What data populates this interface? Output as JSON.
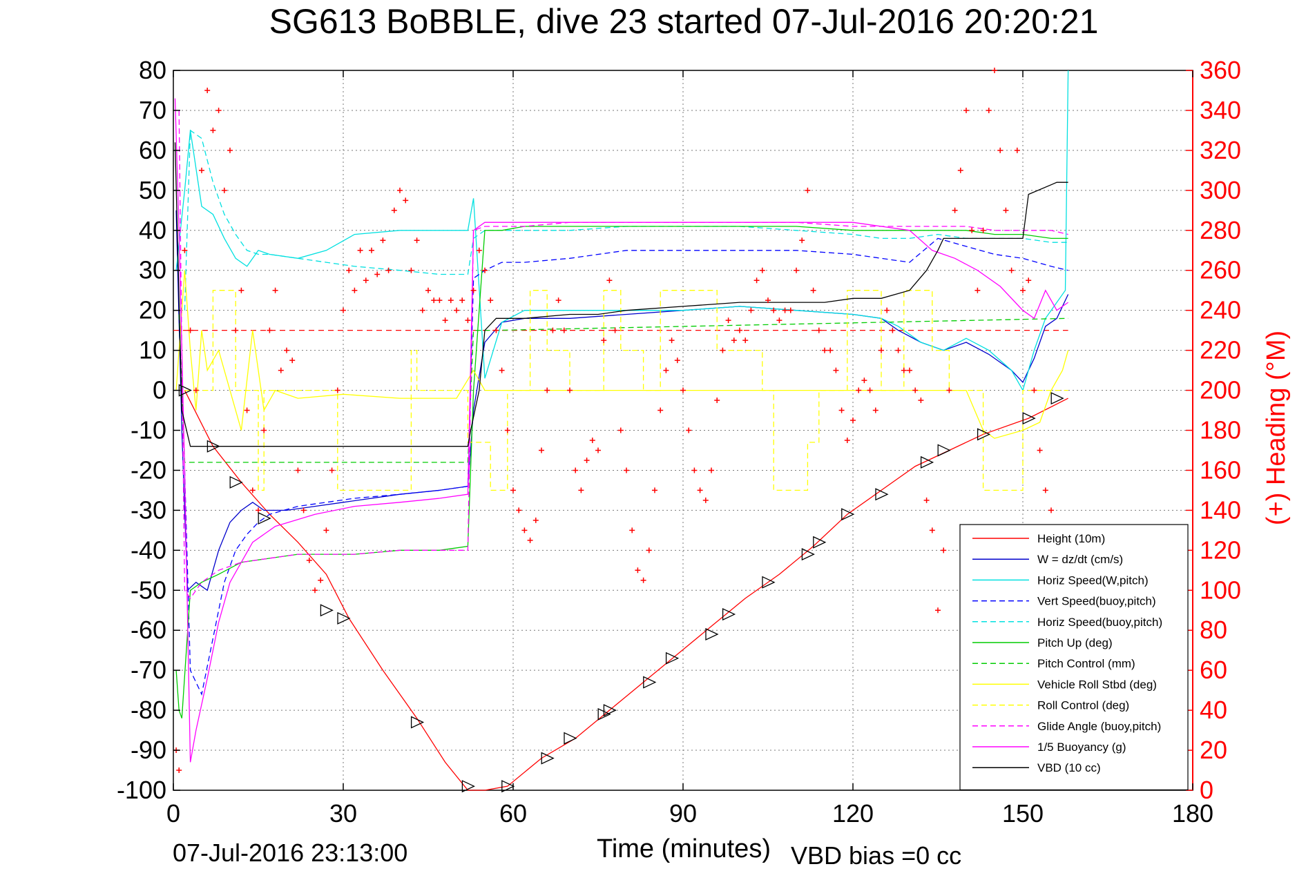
{
  "chart_data": {
    "type": "line",
    "title": "SG613 BoBBLE, dive 23 started 07-Jul-2016 20:20:21",
    "xlabel": "Time (minutes)",
    "ylabel": "",
    "ylabel_right": "(+) Heading (°M)",
    "footer_left": "07-Jul-2016 23:13:00",
    "footer_center": "VBD bias =0 cc",
    "xlim": [
      0,
      180
    ],
    "ylim": [
      -100,
      80
    ],
    "ylim_right": [
      0,
      360
    ],
    "x_ticks": [
      "0",
      "30",
      "60",
      "90",
      "120",
      "150",
      "180"
    ],
    "y_ticks": [
      "80",
      "70",
      "60",
      "50",
      "40",
      "30",
      "20",
      "10",
      "0",
      "-10",
      "-20",
      "-30",
      "-40",
      "-50",
      "-60",
      "-70",
      "-80",
      "-90",
      "-100"
    ],
    "y_right_ticks": [
      "360",
      "340",
      "320",
      "300",
      "280",
      "260",
      "240",
      "220",
      "200",
      "180",
      "160",
      "140",
      "120",
      "100",
      "80",
      "60",
      "40",
      "20",
      "0"
    ],
    "grid": true,
    "legend_position": "bottom-right",
    "series": [
      {
        "name": "Height (10m)",
        "color": "#ff0000",
        "dash": "solid",
        "x": [
          2,
          7,
          12,
          17,
          22,
          27,
          31,
          37,
          43,
          48,
          52,
          55,
          59,
          65,
          71,
          77,
          83,
          89,
          95,
          101,
          107,
          113,
          119,
          125,
          131,
          137,
          143,
          151,
          158
        ],
        "y": [
          0,
          -14,
          -23,
          -31,
          -38,
          -46,
          -57,
          -70,
          -82,
          -93,
          -100,
          -100,
          -99,
          -92,
          -87,
          -80,
          -73,
          -66,
          -59,
          -52,
          -46,
          -39,
          -31,
          -25,
          -19,
          -15,
          -11,
          -7,
          -2
        ]
      },
      {
        "name": "W = dz/dt (cm/s)",
        "color": "#0000cc",
        "dash": "solid",
        "x": [
          0.5,
          1.5,
          2.5,
          4,
          6,
          8,
          10,
          12,
          14,
          16,
          20,
          25,
          30,
          40,
          47,
          52,
          53,
          55,
          58,
          62,
          70,
          80,
          90,
          100,
          110,
          120,
          125,
          128,
          132,
          136,
          140,
          144,
          148,
          150,
          152,
          154,
          156,
          158
        ],
        "y": [
          45,
          -10,
          -50,
          -48,
          -50,
          -40,
          -33,
          -30,
          -28,
          -30,
          -30,
          -29,
          -28,
          -26,
          -25,
          -24,
          -5,
          12,
          17,
          18,
          18,
          19,
          20,
          21,
          20,
          19,
          18,
          15,
          12,
          10,
          12,
          9,
          5,
          2,
          8,
          16,
          18,
          24
        ]
      },
      {
        "name": "Horiz Speed(W,pitch)",
        "color": "#00e0e0",
        "dash": "solid",
        "x": [
          0.5,
          2,
          3,
          5,
          7,
          9,
          11,
          13,
          15,
          17,
          22,
          27,
          32,
          40,
          47,
          52,
          53,
          55,
          58,
          62,
          70,
          80,
          90,
          100,
          110,
          120,
          125,
          128,
          132,
          136,
          140,
          144,
          148,
          150,
          152,
          154,
          156,
          157.5,
          158
        ],
        "y": [
          30,
          50,
          65,
          46,
          44,
          38,
          33,
          31,
          35,
          34,
          33,
          35,
          39,
          40,
          40,
          40,
          48,
          3,
          17,
          20,
          20,
          20,
          20,
          21,
          20,
          19,
          18,
          16,
          12,
          10,
          13,
          10,
          5,
          0,
          10,
          18,
          22,
          25,
          80
        ]
      },
      {
        "name": "Vert Speed(buoy,pitch)",
        "color": "#0000ff",
        "dash": "dashed",
        "x": [
          2,
          3,
          5,
          7,
          9,
          11,
          13,
          15,
          17,
          22,
          27,
          32,
          40,
          47,
          52,
          53,
          55,
          58,
          62,
          70,
          80,
          90,
          100,
          110,
          120,
          125,
          130,
          135,
          140,
          145,
          150,
          155,
          158
        ],
        "y": [
          -20,
          -70,
          -76,
          -62,
          -48,
          -40,
          -36,
          -33,
          -31,
          -29,
          -28,
          -27,
          -26,
          -25,
          -24,
          28,
          30,
          32,
          32,
          33,
          35,
          35,
          35,
          35,
          34,
          33,
          32,
          38,
          36,
          34,
          33,
          31,
          30
        ]
      },
      {
        "name": "Horiz Speed(buoy,pitch)",
        "color": "#00e0e0",
        "dash": "dashed",
        "x": [
          2,
          3,
          5,
          7,
          9,
          11,
          13,
          15,
          17,
          22,
          27,
          32,
          40,
          47,
          52,
          53,
          55,
          58,
          62,
          70,
          80,
          90,
          100,
          110,
          120,
          125,
          130,
          135,
          140,
          145,
          150,
          155,
          158
        ],
        "y": [
          20,
          65,
          63,
          52,
          44,
          39,
          35,
          34,
          34,
          33,
          32,
          31,
          30,
          29,
          29,
          38,
          40,
          40,
          40,
          40,
          41,
          41,
          41,
          40,
          39,
          38,
          38,
          39,
          38,
          38,
          38,
          37,
          37
        ]
      },
      {
        "name": "Pitch Up (deg)",
        "color": "#00cc00",
        "dash": "solid",
        "x": [
          0.5,
          1,
          1.5,
          3,
          5,
          8,
          12,
          17,
          22,
          27,
          32,
          40,
          47,
          52,
          53,
          55,
          58,
          62,
          70,
          80,
          90,
          100,
          110,
          120,
          125,
          130,
          135,
          140,
          145,
          150,
          155,
          158
        ],
        "y": [
          -70,
          -80,
          -82,
          -50,
          -48,
          -46,
          -43,
          -42,
          -41,
          -41,
          -41,
          -40,
          -40,
          -39,
          0,
          40,
          40,
          41,
          41,
          41,
          41,
          41,
          41,
          40,
          40,
          40,
          40,
          40,
          39,
          39,
          38,
          38
        ]
      },
      {
        "name": "Pitch Control (mm)",
        "color": "#00cc00",
        "dash": "dashed",
        "x": [
          1,
          2,
          3,
          52,
          53,
          57,
          158
        ],
        "y": [
          19,
          -18,
          -18,
          -18,
          15,
          15,
          18
        ]
      },
      {
        "name": "Vehicle Roll Stbd (deg)",
        "color": "#ffff00",
        "dash": "solid",
        "x": [
          0.5,
          2,
          3,
          4,
          5,
          6,
          8,
          10,
          12,
          14,
          16,
          18,
          22,
          30,
          40,
          50,
          53,
          55,
          60,
          70,
          80,
          90,
          100,
          110,
          120,
          130,
          140,
          143,
          145,
          150,
          153,
          155,
          157,
          158
        ],
        "y": [
          0,
          30,
          10,
          -5,
          15,
          5,
          10,
          0,
          -10,
          15,
          -5,
          0,
          -2,
          -1,
          -2,
          -2,
          5,
          0,
          0,
          0,
          0,
          0,
          0,
          0,
          0,
          0,
          0,
          -10,
          -12,
          -10,
          -8,
          0,
          5,
          10
        ]
      },
      {
        "name": "Roll Control (deg)",
        "color": "#ffff00",
        "dash": "dashed",
        "x": [
          2,
          3,
          7,
          7,
          11,
          11,
          15,
          15,
          16,
          16,
          29,
          29,
          42,
          42,
          43,
          43,
          52,
          52,
          56,
          56,
          59,
          59,
          63,
          63,
          66,
          66,
          70,
          70,
          76,
          76,
          79,
          79,
          83,
          83,
          86,
          86,
          96,
          96,
          104,
          104,
          106,
          106,
          112,
          112,
          114,
          114,
          119,
          119,
          125,
          125,
          129,
          129,
          134,
          134,
          137,
          137,
          143,
          143,
          150,
          150,
          158
        ],
        "y": [
          0,
          0,
          0,
          25,
          25,
          0,
          0,
          -25,
          -25,
          0,
          0,
          -25,
          -25,
          10,
          10,
          0,
          0,
          -13,
          -13,
          -25,
          -25,
          0,
          0,
          25,
          25,
          10,
          10,
          0,
          0,
          25,
          25,
          10,
          10,
          0,
          0,
          25,
          25,
          10,
          10,
          0,
          0,
          -25,
          -25,
          -13,
          -13,
          0,
          0,
          25,
          25,
          0,
          0,
          25,
          25,
          10,
          10,
          0,
          0,
          -25,
          -25,
          0,
          0
        ]
      },
      {
        "name": "Glide Angle (buoy,pitch)",
        "color": "#ff00ff",
        "dash": "dashed",
        "x": [
          1,
          2,
          3,
          5,
          8,
          12,
          17,
          22,
          27,
          32,
          40,
          47,
          52,
          53,
          55,
          58,
          62,
          70,
          80,
          90,
          100,
          110,
          120,
          125,
          130,
          135,
          140,
          145,
          150,
          155,
          158
        ],
        "y": [
          70,
          -50,
          -52,
          -48,
          -45,
          -43,
          -42,
          -41,
          -41,
          -41,
          -40,
          -40,
          -40,
          40,
          41,
          41,
          41,
          42,
          42,
          42,
          42,
          42,
          41,
          41,
          41,
          41,
          41,
          40,
          40,
          40,
          39
        ]
      },
      {
        "name": "1/5 Buoyancy (g)",
        "color": "#ff00ff",
        "dash": "solid",
        "x": [
          0.3,
          1,
          2,
          3,
          4,
          6,
          8,
          10,
          14,
          18,
          25,
          32,
          40,
          47,
          52,
          53,
          55,
          58,
          62,
          70,
          80,
          90,
          100,
          110,
          120,
          130,
          134,
          138,
          142,
          146,
          150,
          152,
          154,
          156,
          158
        ],
        "y": [
          73,
          40,
          -20,
          -93,
          -85,
          -72,
          -58,
          -48,
          -38,
          -34,
          -31,
          -29,
          -28,
          -27,
          -26,
          40,
          42,
          42,
          42,
          42,
          42,
          42,
          42,
          42,
          42,
          40,
          35,
          33,
          30,
          26,
          20,
          18,
          25,
          20,
          22
        ]
      },
      {
        "name": "VBD (10 cc)",
        "color": "#000000",
        "dash": "solid",
        "x": [
          0.3,
          1.5,
          3,
          52,
          52.5,
          54,
          55,
          57,
          58,
          62,
          70,
          75,
          80,
          90,
          100,
          105,
          110,
          115,
          120,
          125,
          130,
          133,
          135,
          136,
          150,
          151,
          156,
          158
        ],
        "y": [
          62,
          -5,
          -14,
          -14,
          -10,
          0,
          15,
          18,
          18,
          18,
          19,
          19,
          20,
          21,
          22,
          22,
          22,
          22,
          23,
          23,
          25,
          30,
          35,
          38,
          38,
          49,
          52,
          52
        ]
      },
      {
        "name": "(+) Heading",
        "color": "#ff0000",
        "marker": "+",
        "axis": "right",
        "x": [
          0.5,
          1,
          2,
          3,
          4,
          5,
          6,
          7,
          8,
          9,
          10,
          11,
          12,
          13,
          14,
          15,
          16,
          17,
          18,
          19,
          20,
          21,
          22,
          23,
          24,
          25,
          26,
          27,
          28,
          29,
          30,
          31,
          32,
          33,
          34,
          35,
          36,
          37,
          38,
          39,
          40,
          41,
          42,
          43,
          44,
          45,
          46,
          47,
          48,
          49,
          50,
          51,
          52,
          53,
          54,
          55,
          56,
          57,
          58,
          59,
          60,
          61,
          62,
          63,
          64,
          65,
          66,
          67,
          68,
          69,
          70,
          71,
          72,
          73,
          74,
          75,
          76,
          77,
          78,
          79,
          80,
          81,
          82,
          83,
          84,
          85,
          86,
          87,
          88,
          89,
          90,
          91,
          92,
          93,
          94,
          95,
          96,
          97,
          98,
          99,
          100,
          101,
          102,
          103,
          104,
          105,
          106,
          107,
          108,
          109,
          110,
          111,
          112,
          113,
          114,
          115,
          116,
          117,
          118,
          119,
          120,
          121,
          122,
          123,
          124,
          125,
          126,
          127,
          128,
          129,
          130,
          131,
          132,
          133,
          134,
          135,
          136,
          137,
          138,
          139,
          140,
          141,
          142,
          143,
          144,
          145,
          146,
          147,
          148,
          149,
          150,
          151,
          152,
          153,
          154,
          155
        ],
        "y": [
          20,
          10,
          270,
          230,
          200,
          310,
          350,
          330,
          340,
          300,
          320,
          230,
          250,
          190,
          150,
          140,
          180,
          230,
          250,
          210,
          220,
          215,
          160,
          140,
          115,
          100,
          105,
          130,
          160,
          200,
          240,
          260,
          250,
          270,
          255,
          270,
          258,
          275,
          260,
          290,
          300,
          295,
          260,
          275,
          240,
          250,
          245,
          245,
          235,
          245,
          240,
          245,
          235,
          250,
          270,
          260,
          245,
          230,
          210,
          180,
          150,
          140,
          130,
          125,
          135,
          170,
          200,
          230,
          245,
          230,
          200,
          160,
          150,
          165,
          175,
          170,
          225,
          255,
          230,
          180,
          160,
          130,
          110,
          105,
          120,
          150,
          190,
          210,
          225,
          215,
          200,
          180,
          160,
          150,
          145,
          160,
          195,
          220,
          235,
          225,
          230,
          225,
          240,
          255,
          260,
          245,
          240,
          235,
          240,
          240,
          260,
          275,
          300,
          250,
          230,
          220,
          220,
          210,
          190,
          175,
          185,
          200,
          205,
          200,
          190,
          220,
          240,
          230,
          220,
          210,
          210,
          200,
          195,
          145,
          130,
          90,
          120,
          200,
          290,
          310,
          340,
          280,
          250,
          280,
          340,
          360,
          320,
          290,
          260,
          320,
          250,
          255,
          200,
          170,
          150,
          140
        ]
      }
    ],
    "markers": {
      "type": "open-triangle",
      "color": "#000000",
      "x": [
        2,
        7,
        11,
        16,
        27,
        30,
        43,
        52,
        59,
        66,
        70,
        76,
        77,
        84,
        88,
        95,
        98,
        105,
        112,
        114,
        119,
        125,
        133,
        136,
        143,
        151,
        156
      ],
      "y": [
        0,
        -14,
        -23,
        -32,
        -55,
        -57,
        -83,
        -99,
        -99,
        -92,
        -87,
        -81,
        -80,
        -73,
        -67,
        -61,
        -56,
        -48,
        -41,
        -38,
        -31,
        -26,
        -18,
        -15,
        -11,
        -7,
        -2
      ]
    }
  }
}
